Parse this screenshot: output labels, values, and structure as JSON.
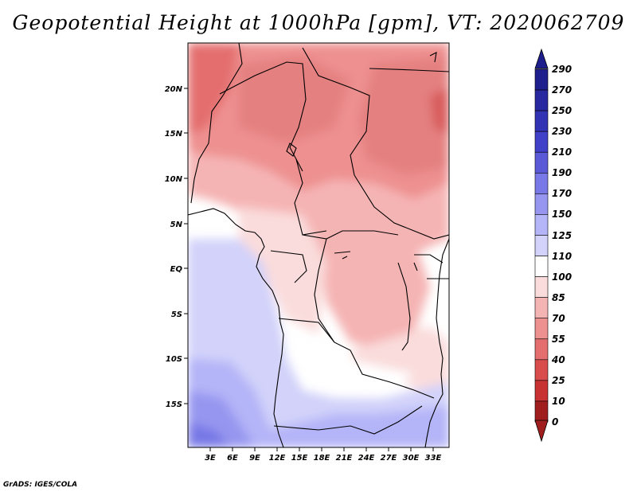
{
  "title": "Geopotential Height at 1000hPa [gpm], VT: 2020062709",
  "credit": "GrADS: IGES/COLA",
  "map": {
    "lon_labels": [
      "3E",
      "6E",
      "9E",
      "12E",
      "15E",
      "18E",
      "21E",
      "24E",
      "27E",
      "30E",
      "33E"
    ],
    "lat_labels": [
      "20N",
      "15N",
      "10N",
      "5N",
      "EQ",
      "5S",
      "10S",
      "15S"
    ],
    "lon_range": [
      0,
      35
    ],
    "lat_range": [
      -20,
      25
    ]
  },
  "colorbar": {
    "labels": [
      "290",
      "270",
      "250",
      "230",
      "210",
      "190",
      "170",
      "150",
      "125",
      "110",
      "100",
      "85",
      "70",
      "55",
      "40",
      "25",
      "10",
      "0"
    ],
    "colors": [
      "#1e1e8c",
      "#2828a0",
      "#3232b4",
      "#4040c8",
      "#5a5ad8",
      "#7878e6",
      "#9696f0",
      "#b4b4f8",
      "#d2d2fa",
      "#ffffff",
      "#fadcdc",
      "#f5b4b4",
      "#ee9090",
      "#e46e6e",
      "#d84c4c",
      "#c83232",
      "#a01e1e"
    ]
  }
}
